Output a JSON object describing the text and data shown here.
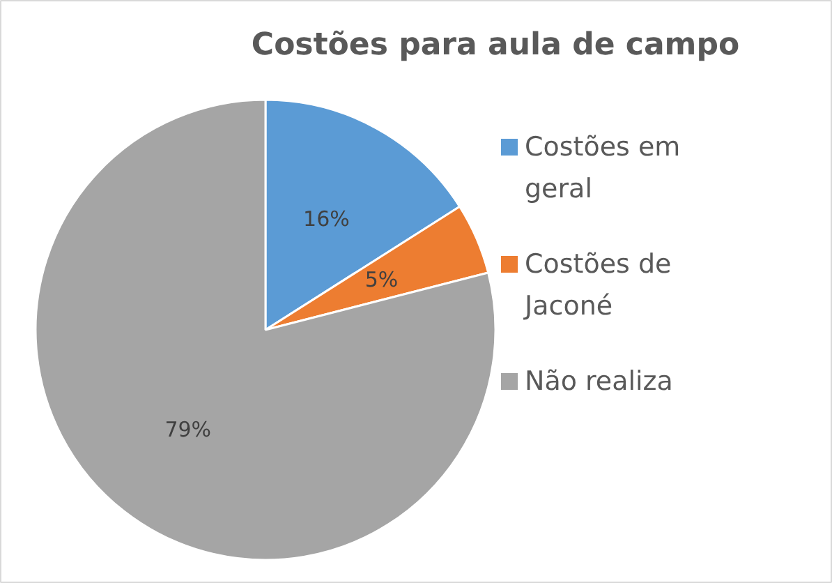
{
  "chart_data": {
    "type": "pie",
    "title": "Costões para aula de campo",
    "categories": [
      "Costões em geral",
      "Costões de Jaconé",
      "Não realiza"
    ],
    "values": [
      16,
      5,
      79
    ],
    "colors": [
      "#5b9bd5",
      "#ed7d31",
      "#a5a5a5"
    ],
    "value_labels": [
      "16%",
      "5%",
      "79%"
    ],
    "legend": "right"
  }
}
